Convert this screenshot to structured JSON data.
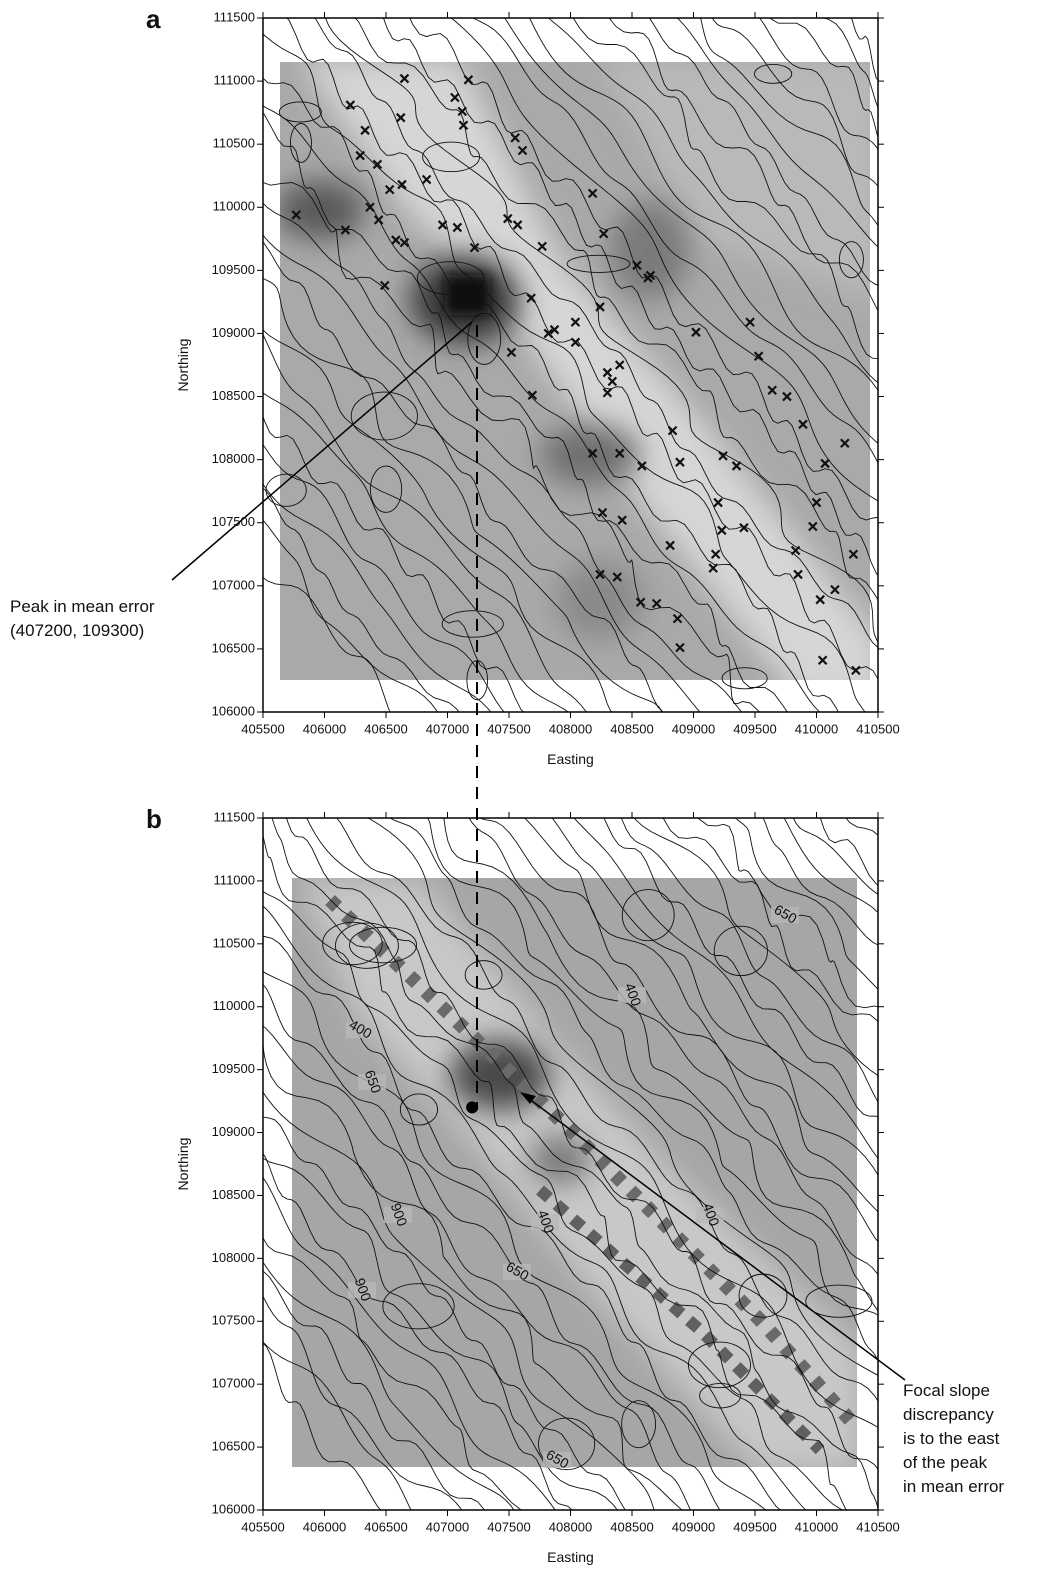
{
  "chart_data": [
    {
      "type": "scatter",
      "title": "a",
      "xlabel": "Easting",
      "ylabel": "Northing",
      "xlim": [
        405500,
        410500
      ],
      "xticks": [
        405500,
        406000,
        406500,
        407000,
        407500,
        408000,
        408500,
        409000,
        409500,
        410000,
        410500
      ],
      "ylim": [
        106000,
        111500
      ],
      "yticks": [
        106000,
        106500,
        107000,
        107500,
        108000,
        108500,
        109000,
        109500,
        110000,
        110500,
        111000,
        111500
      ],
      "marker": "x",
      "color": "#111111",
      "x": [
        405770,
        406210,
        406330,
        406290,
        406430,
        406530,
        406630,
        406650,
        406620,
        406830,
        406370,
        406440,
        406170,
        406580,
        406650,
        406490,
        406960,
        407080,
        407060,
        407120,
        407130,
        407170,
        407220,
        407550,
        407610,
        407490,
        407570,
        407770,
        407680,
        407820,
        407870,
        408040,
        408040,
        407520,
        407690,
        408180,
        408270,
        408240,
        408300,
        408400,
        408300,
        408340,
        408180,
        408400,
        408540,
        408630,
        408650,
        408580,
        408830,
        408890,
        409020,
        408260,
        408420,
        408240,
        408380,
        408570,
        408700,
        408810,
        408870,
        408890,
        409180,
        409160,
        409240,
        409200,
        409230,
        409350,
        409410,
        409460,
        409530,
        409640,
        409760,
        409890,
        409830,
        409850,
        410000,
        409970,
        410030,
        410070,
        410150,
        410230,
        410300,
        410320,
        410050
      ],
      "values": [
        109940,
        110810,
        110610,
        110410,
        110340,
        110140,
        110180,
        111020,
        110710,
        110220,
        110000,
        109900,
        109820,
        109740,
        109720,
        109380,
        109860,
        109840,
        110870,
        110760,
        110650,
        111010,
        109680,
        110550,
        110450,
        109910,
        109860,
        109690,
        109280,
        109000,
        109030,
        109090,
        108930,
        108850,
        108510,
        110110,
        109790,
        109210,
        108690,
        108750,
        108530,
        108620,
        108050,
        108050,
        109540,
        109440,
        109460,
        107950,
        108230,
        107980,
        109010,
        107580,
        107520,
        107090,
        107070,
        106870,
        106860,
        107320,
        106740,
        106510,
        107250,
        107140,
        108030,
        107660,
        107440,
        107950,
        107460,
        109090,
        108820,
        108550,
        108500,
        108280,
        107280,
        107090,
        107660,
        107470,
        106890,
        107970,
        106970,
        108130,
        107250,
        106330,
        106410
      ],
      "annotations": [
        "Peak in mean error",
        "(407200, 109300)"
      ]
    },
    {
      "type": "scatter",
      "title": "b",
      "xlabel": "Easting",
      "ylabel": "Northing",
      "xlim": [
        405500,
        410500
      ],
      "xticks": [
        405500,
        406000,
        406500,
        407000,
        407500,
        408000,
        408500,
        409000,
        409500,
        410000,
        410500
      ],
      "ylim": [
        106000,
        111500
      ],
      "yticks": [
        106000,
        106500,
        107000,
        107500,
        108000,
        108500,
        109000,
        109500,
        110000,
        110500,
        111000,
        111500
      ],
      "marker": "dot",
      "color": "#000000",
      "x": [
        407200
      ],
      "values": [
        109200
      ],
      "contour_labels": [
        400,
        650,
        400,
        650,
        900,
        400,
        650,
        400,
        900,
        650
      ],
      "annotations": [
        "Focal slope",
        "discrepancy",
        "is to the east",
        "of the peak",
        "in mean error"
      ]
    }
  ]
}
